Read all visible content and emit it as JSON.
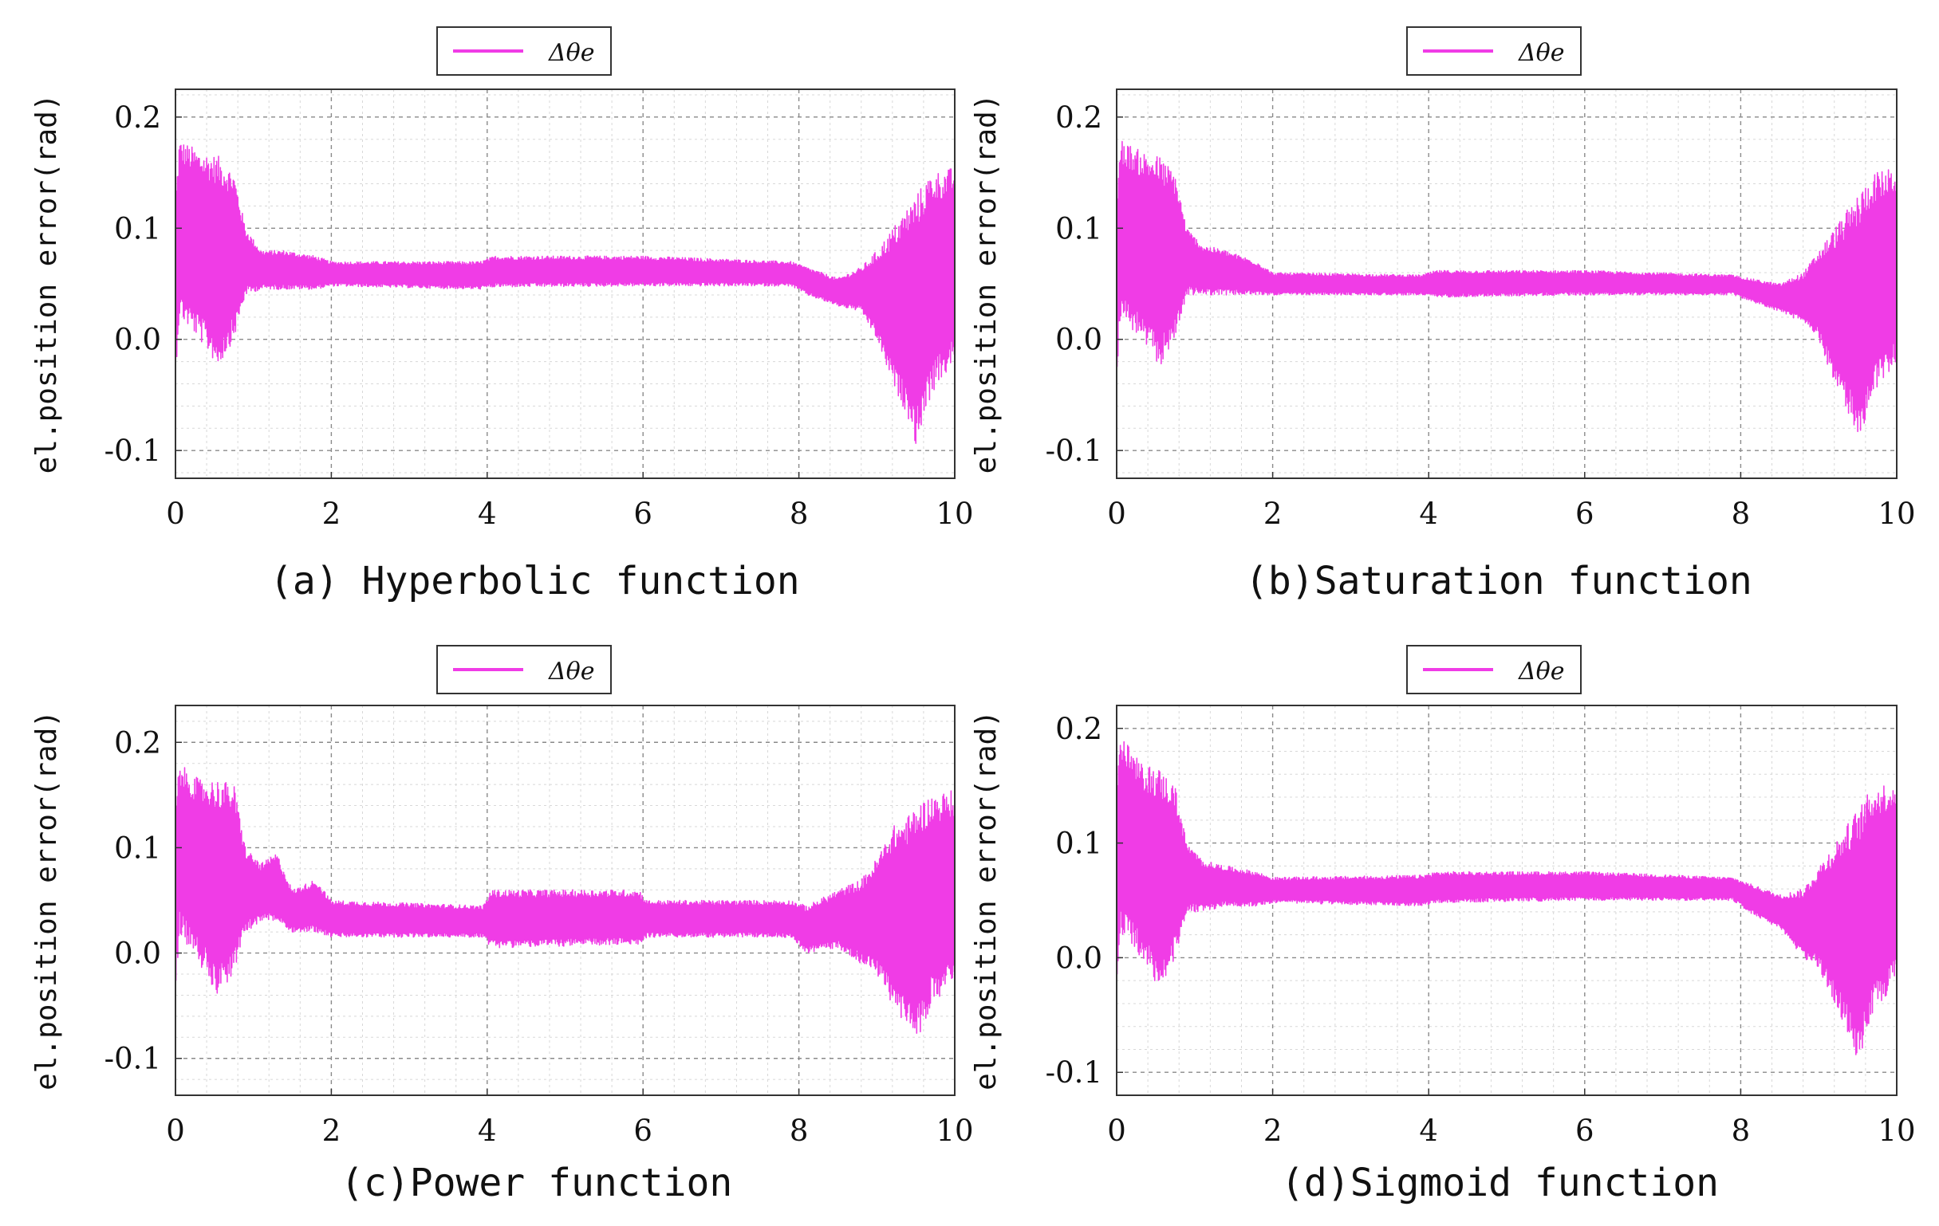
{
  "figure": {
    "line_color": "#f03ce6"
  },
  "chart_data": [
    {
      "type": "line",
      "caption": "(a) Hyperbolic function",
      "xlabel": "",
      "ylabel": "el.position error(rad)",
      "legend": {
        "label": "Δθe",
        "placement": "top-center"
      },
      "xlim": [
        0,
        10
      ],
      "ylim": [
        -0.125,
        0.225
      ],
      "xticks": [
        "0",
        "2",
        "4",
        "6",
        "8",
        "10"
      ],
      "yticks": [
        "-0.1",
        "0.0",
        "0.1",
        "0.2"
      ],
      "grid": true,
      "series": [
        {
          "name": "Δθe",
          "envelope": {
            "t": [
              0,
              0.05,
              0.3,
              0.55,
              0.75,
              0.9,
              1.1,
              1.4,
              1.8,
              2.0,
              3.9,
              4.1,
              6.0,
              7.9,
              8.1,
              8.5,
              8.8,
              9.0,
              9.2,
              9.4,
              9.5,
              9.7,
              10.0
            ],
            "upper": [
              0.13,
              0.18,
              0.17,
              0.165,
              0.15,
              0.1,
              0.08,
              0.08,
              0.075,
              0.07,
              0.07,
              0.075,
              0.075,
              0.07,
              0.065,
              0.055,
              0.065,
              0.08,
              0.1,
              0.12,
              0.13,
              0.15,
              0.155
            ],
            "lower": [
              -0.035,
              0.02,
              0.0,
              -0.025,
              0.0,
              0.04,
              0.045,
              0.045,
              0.045,
              0.048,
              0.045,
              0.047,
              0.048,
              0.048,
              0.04,
              0.03,
              0.025,
              0.0,
              -0.04,
              -0.07,
              -0.095,
              -0.05,
              -0.02
            ]
          }
        }
      ]
    },
    {
      "type": "line",
      "caption": "(b)Saturation function",
      "xlabel": "",
      "ylabel": "el.position error(rad)",
      "legend": {
        "label": "Δθe",
        "placement": "top-center"
      },
      "xlim": [
        0,
        10
      ],
      "ylim": [
        -0.125,
        0.225
      ],
      "xticks": [
        "0",
        "2",
        "4",
        "6",
        "8",
        "10"
      ],
      "yticks": [
        "-0.1",
        "0.0",
        "0.1",
        "0.2"
      ],
      "grid": true,
      "series": [
        {
          "name": "Δθe",
          "envelope": {
            "t": [
              0,
              0.05,
              0.3,
              0.55,
              0.75,
              0.9,
              1.1,
              1.4,
              1.8,
              2.0,
              3.9,
              4.1,
              6.0,
              7.9,
              8.1,
              8.5,
              8.8,
              9.0,
              9.2,
              9.4,
              9.5,
              9.7,
              10.0
            ],
            "upper": [
              0.13,
              0.18,
              0.17,
              0.165,
              0.15,
              0.1,
              0.085,
              0.08,
              0.07,
              0.06,
              0.058,
              0.062,
              0.062,
              0.058,
              0.055,
              0.05,
              0.06,
              0.08,
              0.1,
              0.12,
              0.13,
              0.15,
              0.155
            ],
            "lower": [
              -0.035,
              0.02,
              0.0,
              -0.025,
              0.0,
              0.04,
              0.04,
              0.04,
              0.04,
              0.04,
              0.04,
              0.038,
              0.04,
              0.04,
              0.035,
              0.025,
              0.015,
              0.0,
              -0.04,
              -0.07,
              -0.095,
              -0.05,
              -0.02
            ]
          }
        }
      ]
    },
    {
      "type": "line",
      "caption": "(c)Power function",
      "xlabel": "",
      "ylabel": "el.position error(rad)",
      "legend": {
        "label": "Δθe",
        "placement": "top-center"
      },
      "xlim": [
        0,
        10
      ],
      "ylim": [
        -0.135,
        0.235
      ],
      "xticks": [
        "0",
        "2",
        "4",
        "6",
        "8",
        "10"
      ],
      "yticks": [
        "-0.1",
        "0.0",
        "0.1",
        "0.2"
      ],
      "grid": true,
      "series": [
        {
          "name": "Δθe",
          "envelope": {
            "t": [
              0,
              0.05,
              0.3,
              0.55,
              0.75,
              0.9,
              1.1,
              1.3,
              1.5,
              1.8,
              2.0,
              3.95,
              4.05,
              5.95,
              6.05,
              7.9,
              8.1,
              8.5,
              8.8,
              9.0,
              9.2,
              9.4,
              9.5,
              9.7,
              10.0
            ],
            "upper": [
              0.14,
              0.18,
              0.165,
              0.165,
              0.16,
              0.1,
              0.085,
              0.095,
              0.06,
              0.07,
              0.05,
              0.045,
              0.06,
              0.06,
              0.05,
              0.05,
              0.045,
              0.06,
              0.07,
              0.09,
              0.12,
              0.13,
              0.14,
              0.15,
              0.155
            ],
            "lower": [
              -0.04,
              0.02,
              -0.01,
              -0.04,
              -0.02,
              0.02,
              0.03,
              0.03,
              0.02,
              0.02,
              0.015,
              0.015,
              0.005,
              0.008,
              0.015,
              0.015,
              0.0,
              0.005,
              -0.01,
              -0.02,
              -0.05,
              -0.07,
              -0.085,
              -0.05,
              -0.03
            ]
          }
        }
      ]
    },
    {
      "type": "line",
      "caption": "(d)Sigmoid function",
      "xlabel": "",
      "ylabel": "el.position error(rad)",
      "legend": {
        "label": "Δθe",
        "placement": "top-center"
      },
      "xlim": [
        0,
        10
      ],
      "ylim": [
        -0.12,
        0.22
      ],
      "xticks": [
        "0",
        "2",
        "4",
        "6",
        "8",
        "10"
      ],
      "yticks": [
        "-0.1",
        "0.0",
        "0.1",
        "0.2"
      ],
      "grid": true,
      "series": [
        {
          "name": "Δθe",
          "envelope": {
            "t": [
              0,
              0.05,
              0.3,
              0.55,
              0.75,
              0.9,
              1.1,
              1.4,
              1.8,
              2.0,
              3.9,
              4.1,
              6.0,
              7.9,
              8.1,
              8.5,
              8.8,
              9.0,
              9.2,
              9.4,
              9.5,
              9.7,
              10.0
            ],
            "upper": [
              0.15,
              0.195,
              0.17,
              0.165,
              0.15,
              0.1,
              0.085,
              0.08,
              0.075,
              0.07,
              0.072,
              0.075,
              0.075,
              0.07,
              0.065,
              0.055,
              0.06,
              0.08,
              0.1,
              0.12,
              0.13,
              0.15,
              0.155
            ],
            "lower": [
              -0.025,
              0.02,
              0.0,
              -0.03,
              0.0,
              0.04,
              0.04,
              0.045,
              0.045,
              0.048,
              0.045,
              0.048,
              0.05,
              0.05,
              0.04,
              0.025,
              0.0,
              -0.01,
              -0.04,
              -0.07,
              -0.095,
              -0.05,
              -0.02
            ]
          }
        }
      ]
    }
  ]
}
